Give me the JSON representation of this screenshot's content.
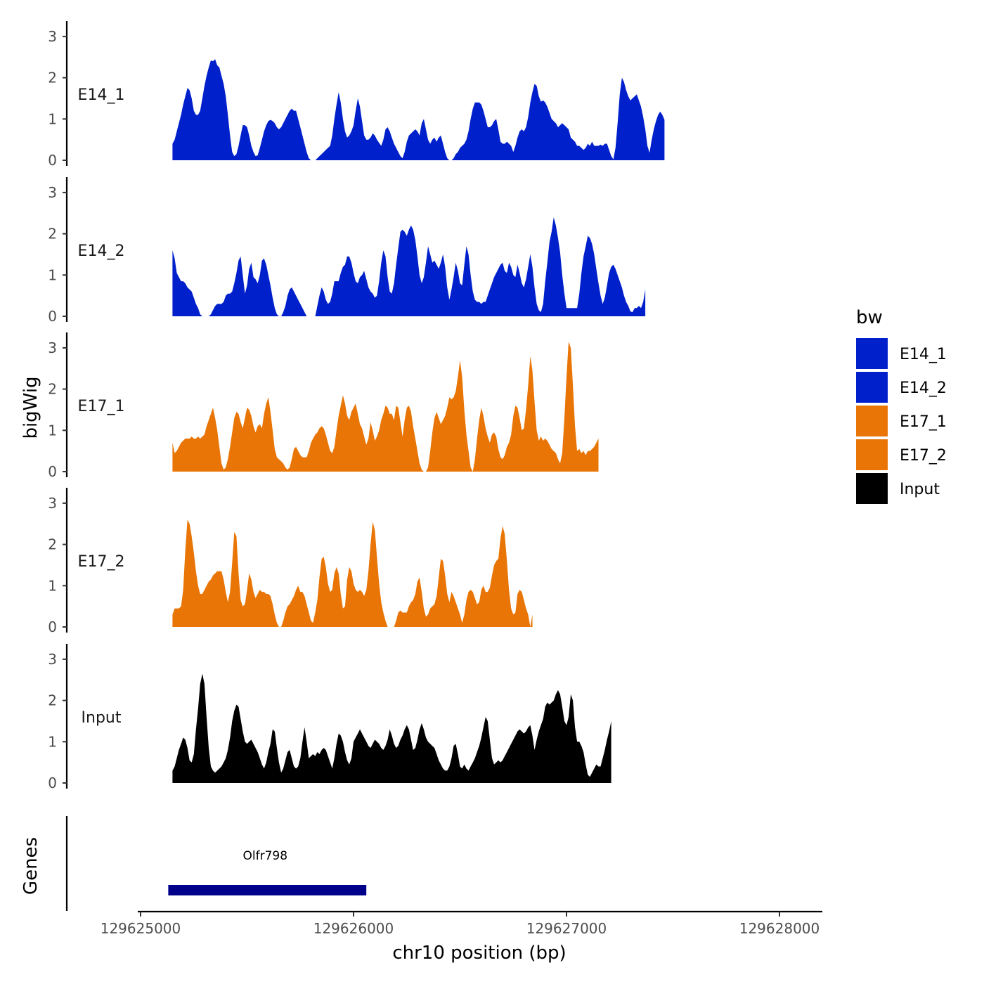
{
  "chart_data": {
    "type": "area",
    "title": "",
    "xlabel": "chr10 position (bp)",
    "ylabel": "bigWig",
    "gene_track_label": "Genes",
    "legend_title": "bw",
    "xlim": [
      129624990,
      129628200
    ],
    "x_ticks": [
      129625000,
      129626000,
      129627000,
      129628000
    ],
    "x_tick_labels": [
      "129625000",
      "129626000",
      "129627000",
      "129628000"
    ],
    "ylim": [
      0,
      3.3
    ],
    "y_ticks": [
      0,
      1,
      2,
      3
    ],
    "y_tick_labels": [
      "0",
      "1",
      "2",
      "3"
    ],
    "x_start": 129625150,
    "step": 10,
    "series": [
      {
        "name": "E14_1",
        "color": "#0020CC",
        "values": [
          0.4,
          0.5,
          0.7,
          0.9,
          1.1,
          1.35,
          1.55,
          1.75,
          1.7,
          1.5,
          1.2,
          1.1,
          1.1,
          1.2,
          1.5,
          1.8,
          2.05,
          2.25,
          2.42,
          2.4,
          2.45,
          2.3,
          2.25,
          2.05,
          1.85,
          1.55,
          1.1,
          0.6,
          0.2,
          0.1,
          0.15,
          0.35,
          0.6,
          0.85,
          0.85,
          0.8,
          0.6,
          0.35,
          0.2,
          0.1,
          0.12,
          0.3,
          0.5,
          0.7,
          0.85,
          0.95,
          0.98,
          0.95,
          0.9,
          0.8,
          0.75,
          0.8,
          0.9,
          1.0,
          1.1,
          1.2,
          1.25,
          1.2,
          1.2,
          1.0,
          0.8,
          0.6,
          0.4,
          0.2,
          0.05,
          0.0,
          0.0,
          0.0,
          0.05,
          0.1,
          0.15,
          0.2,
          0.25,
          0.3,
          0.35,
          0.6,
          1.0,
          1.35,
          1.65,
          1.4,
          1.0,
          0.7,
          0.55,
          0.6,
          0.7,
          0.85,
          1.2,
          1.5,
          1.3,
          0.95,
          0.6,
          0.5,
          0.5,
          0.55,
          0.65,
          0.6,
          0.5,
          0.42,
          0.35,
          0.5,
          0.75,
          0.8,
          0.7,
          0.55,
          0.4,
          0.3,
          0.2,
          0.1,
          0.05,
          0.2,
          0.45,
          0.6,
          0.65,
          0.7,
          0.75,
          0.7,
          0.6,
          0.9,
          1.0,
          0.75,
          0.5,
          0.4,
          0.5,
          0.55,
          0.45,
          0.55,
          0.6,
          0.4,
          0.2,
          0.05,
          0.0,
          0.0,
          0.05,
          0.15,
          0.2,
          0.3,
          0.35,
          0.4,
          0.5,
          0.7,
          1.0,
          1.25,
          1.4,
          1.4,
          1.4,
          1.35,
          1.2,
          1.0,
          0.8,
          0.8,
          0.85,
          0.95,
          1.0,
          0.75,
          0.45,
          0.4,
          0.4,
          0.45,
          0.4,
          0.35,
          0.2,
          0.35,
          0.55,
          0.7,
          0.75,
          0.7,
          0.8,
          1.05,
          1.4,
          1.65,
          1.85,
          1.8,
          1.55,
          1.42,
          1.45,
          1.4,
          1.3,
          1.15,
          1.0,
          0.95,
          0.9,
          0.8,
          0.85,
          0.9,
          0.85,
          0.8,
          0.75,
          0.55,
          0.5,
          0.45,
          0.35,
          0.35,
          0.3,
          0.25,
          0.3,
          0.4,
          0.35,
          0.45,
          0.35,
          0.35,
          0.35,
          0.38,
          0.35,
          0.4,
          0.4,
          0.25,
          0.1,
          0.02,
          0.3,
          0.9,
          1.6,
          2.0,
          1.9,
          1.7,
          1.55,
          1.45,
          1.5,
          1.55,
          1.6,
          1.45,
          1.3,
          1.05,
          0.75,
          0.35,
          0.18,
          0.5,
          0.75,
          0.95,
          1.1,
          1.18,
          1.1,
          0.98
        ]
      },
      {
        "name": "E14_2",
        "color": "#0020CC",
        "values": [
          1.6,
          1.4,
          1.05,
          0.95,
          0.85,
          0.85,
          0.8,
          0.7,
          0.65,
          0.6,
          0.45,
          0.3,
          0.2,
          0.05,
          0.0,
          0.0,
          0.0,
          0.0,
          0.05,
          0.15,
          0.25,
          0.3,
          0.3,
          0.3,
          0.35,
          0.5,
          0.55,
          0.55,
          0.6,
          0.8,
          1.05,
          1.35,
          1.45,
          1.0,
          0.55,
          0.75,
          1.15,
          1.3,
          0.95,
          0.9,
          0.8,
          1.0,
          1.35,
          1.4,
          1.25,
          1.0,
          0.75,
          0.45,
          0.2,
          0.05,
          0.0,
          0.0,
          0.1,
          0.25,
          0.5,
          0.65,
          0.7,
          0.6,
          0.5,
          0.4,
          0.3,
          0.2,
          0.1,
          0.0,
          0.0,
          0.0,
          0.0,
          0.0,
          0.25,
          0.5,
          0.7,
          0.6,
          0.4,
          0.3,
          0.35,
          0.55,
          0.85,
          0.85,
          0.85,
          1.05,
          1.2,
          1.25,
          1.45,
          1.45,
          1.3,
          1.05,
          0.85,
          0.8,
          0.95,
          1.0,
          1.1,
          0.9,
          0.7,
          0.6,
          0.55,
          0.45,
          0.5,
          0.85,
          1.3,
          1.6,
          1.45,
          0.95,
          0.6,
          0.55,
          0.8,
          1.25,
          1.65,
          2.05,
          2.1,
          2.05,
          1.95,
          2.1,
          2.2,
          2.1,
          1.85,
          1.45,
          1.0,
          0.8,
          0.95,
          1.3,
          1.7,
          1.5,
          1.3,
          1.35,
          1.25,
          1.15,
          1.3,
          1.5,
          1.2,
          0.7,
          0.4,
          0.65,
          0.95,
          1.3,
          1.1,
          0.8,
          0.75,
          1.25,
          1.7,
          1.5,
          1.0,
          0.6,
          0.4,
          0.35,
          0.35,
          0.3,
          0.35,
          0.35,
          0.5,
          0.65,
          0.8,
          0.95,
          1.05,
          1.15,
          1.25,
          1.3,
          1.1,
          1.05,
          1.3,
          1.2,
          1.0,
          0.95,
          1.25,
          1.05,
          0.8,
          0.7,
          0.9,
          1.2,
          1.5,
          1.2,
          0.7,
          0.3,
          0.15,
          0.1,
          0.3,
          0.85,
          1.3,
          1.8,
          2.05,
          2.4,
          2.2,
          1.9,
          1.55,
          1.0,
          0.55,
          0.2,
          0.2,
          0.2,
          0.2,
          0.2,
          0.2,
          0.55,
          1.05,
          1.45,
          1.7,
          1.95,
          1.9,
          1.75,
          1.5,
          1.15,
          0.8,
          0.5,
          0.3,
          0.45,
          0.75,
          1.05,
          1.2,
          1.25,
          1.15,
          1.0,
          0.85,
          0.7,
          0.5,
          0.35,
          0.25,
          0.12,
          0.1,
          0.2,
          0.2,
          0.25,
          0.2,
          0.35,
          0.65
        ]
      },
      {
        "name": "E17_1",
        "color": "#E87506",
        "values": [
          0.7,
          0.45,
          0.5,
          0.6,
          0.7,
          0.75,
          0.8,
          0.8,
          0.8,
          0.85,
          0.8,
          0.8,
          0.85,
          0.8,
          0.85,
          0.9,
          1.1,
          1.25,
          1.4,
          1.55,
          1.3,
          1.0,
          0.6,
          0.2,
          0.05,
          0.1,
          0.3,
          0.6,
          0.95,
          1.3,
          1.45,
          1.4,
          1.2,
          1.05,
          1.3,
          1.55,
          1.5,
          1.35,
          1.1,
          0.95,
          1.1,
          1.15,
          1.05,
          1.4,
          1.65,
          1.8,
          1.45,
          1.0,
          0.55,
          0.35,
          0.3,
          0.25,
          0.2,
          0.1,
          0.05,
          0.1,
          0.3,
          0.55,
          0.6,
          0.5,
          0.4,
          0.35,
          0.35,
          0.35,
          0.5,
          0.7,
          0.8,
          0.9,
          0.95,
          1.05,
          1.1,
          1.05,
          0.9,
          0.7,
          0.5,
          0.45,
          0.6,
          1.0,
          1.35,
          1.6,
          1.85,
          1.65,
          1.35,
          1.25,
          1.45,
          1.55,
          1.65,
          1.4,
          1.15,
          1.05,
          0.85,
          0.65,
          0.8,
          1.2,
          1.0,
          0.75,
          0.85,
          1.0,
          1.25,
          1.4,
          1.6,
          1.55,
          1.4,
          1.4,
          1.25,
          1.6,
          1.55,
          1.2,
          0.85,
          1.25,
          1.55,
          1.6,
          1.45,
          1.1,
          0.8,
          0.5,
          0.2,
          0.05,
          0.0,
          0.0,
          0.1,
          0.5,
          0.95,
          1.3,
          1.45,
          1.3,
          1.15,
          1.25,
          1.35,
          1.55,
          1.8,
          1.75,
          1.8,
          1.95,
          2.3,
          2.7,
          2.3,
          1.5,
          0.9,
          0.5,
          0.1,
          0.0,
          0.3,
          0.8,
          1.25,
          1.55,
          1.35,
          1.05,
          0.85,
          0.7,
          0.9,
          0.95,
          0.85,
          0.55,
          0.35,
          0.3,
          0.4,
          0.6,
          0.7,
          0.9,
          1.35,
          1.6,
          1.55,
          1.3,
          1.0,
          1.05,
          1.5,
          2.1,
          2.8,
          2.45,
          1.7,
          1.0,
          0.75,
          0.85,
          0.75,
          0.8,
          0.75,
          0.65,
          0.55,
          0.5,
          0.45,
          0.3,
          0.2,
          0.45,
          1.3,
          2.3,
          3.15,
          3.0,
          2.1,
          1.1,
          0.5,
          0.55,
          0.45,
          0.5,
          0.4,
          0.5,
          0.5,
          0.55,
          0.6,
          0.7,
          0.8
        ]
      },
      {
        "name": "E17_2",
        "color": "#E87506",
        "values": [
          0.3,
          0.45,
          0.45,
          0.45,
          0.5,
          0.9,
          1.85,
          2.6,
          2.5,
          2.2,
          1.8,
          1.35,
          1.0,
          0.8,
          0.8,
          0.9,
          1.0,
          1.1,
          1.15,
          1.25,
          1.3,
          1.35,
          1.35,
          1.35,
          1.15,
          0.85,
          0.6,
          0.85,
          1.55,
          2.3,
          2.2,
          1.3,
          0.65,
          0.5,
          0.55,
          0.9,
          1.3,
          1.15,
          0.85,
          0.7,
          0.8,
          0.9,
          0.85,
          0.85,
          0.8,
          0.8,
          0.75,
          0.55,
          0.3,
          0.1,
          0.0,
          0.0,
          0.15,
          0.35,
          0.5,
          0.55,
          0.65,
          0.75,
          0.9,
          1.0,
          0.85,
          0.85,
          0.75,
          0.55,
          0.35,
          0.15,
          0.1,
          0.35,
          0.65,
          1.2,
          1.65,
          1.7,
          1.45,
          1.05,
          0.85,
          0.9,
          1.3,
          1.45,
          1.3,
          0.8,
          0.45,
          0.5,
          1.15,
          1.45,
          1.35,
          1.05,
          0.9,
          0.85,
          0.9,
          0.85,
          0.75,
          0.9,
          1.35,
          2.0,
          2.55,
          2.35,
          1.7,
          1.05,
          0.6,
          0.35,
          0.15,
          0.0,
          0.0,
          0.0,
          0.0,
          0.15,
          0.35,
          0.4,
          0.35,
          0.35,
          0.35,
          0.5,
          0.6,
          0.65,
          0.8,
          1.1,
          1.2,
          0.85,
          0.45,
          0.25,
          0.3,
          0.45,
          0.5,
          0.55,
          0.75,
          1.2,
          1.65,
          1.6,
          1.25,
          0.8,
          0.6,
          0.85,
          0.75,
          0.6,
          0.45,
          0.3,
          0.1,
          0.3,
          0.65,
          0.85,
          0.9,
          0.85,
          0.7,
          0.55,
          0.6,
          0.9,
          1.0,
          0.85,
          0.85,
          0.95,
          1.25,
          1.5,
          1.6,
          1.65,
          2.15,
          2.45,
          2.25,
          1.6,
          0.9,
          0.45,
          0.3,
          0.35,
          0.8,
          0.9,
          0.85,
          0.65,
          0.45,
          0.3,
          0.0,
          0.3
        ]
      },
      {
        "name": "Input",
        "color": "#000000",
        "values": [
          0.3,
          0.4,
          0.6,
          0.8,
          0.95,
          1.1,
          1.05,
          0.85,
          0.55,
          0.5,
          0.7,
          1.3,
          1.8,
          2.4,
          2.65,
          2.4,
          1.6,
          0.85,
          0.4,
          0.3,
          0.25,
          0.3,
          0.35,
          0.4,
          0.5,
          0.6,
          0.8,
          1.1,
          1.5,
          1.75,
          1.9,
          1.85,
          1.55,
          1.25,
          1.0,
          0.95,
          1.0,
          1.05,
          0.95,
          0.85,
          0.75,
          0.6,
          0.45,
          0.35,
          0.5,
          0.75,
          0.95,
          1.3,
          1.25,
          0.85,
          0.5,
          0.25,
          0.35,
          0.55,
          0.75,
          0.8,
          0.6,
          0.4,
          0.35,
          0.4,
          0.6,
          1.0,
          1.35,
          1.0,
          0.6,
          0.65,
          0.7,
          0.65,
          0.75,
          0.7,
          0.8,
          0.85,
          0.8,
          0.65,
          0.5,
          0.35,
          0.6,
          0.95,
          1.2,
          1.15,
          1.0,
          0.75,
          0.55,
          0.45,
          0.6,
          1.0,
          1.1,
          1.2,
          1.3,
          1.2,
          1.1,
          1.0,
          0.9,
          0.85,
          0.95,
          1.05,
          1.0,
          0.95,
          0.85,
          0.8,
          0.9,
          1.05,
          1.3,
          1.15,
          0.95,
          0.85,
          0.9,
          1.05,
          1.15,
          1.3,
          1.4,
          1.3,
          1.05,
          0.8,
          0.85,
          1.05,
          1.3,
          1.45,
          1.3,
          1.1,
          1.0,
          0.95,
          0.9,
          0.85,
          0.7,
          0.55,
          0.45,
          0.35,
          0.3,
          0.3,
          0.4,
          0.6,
          0.9,
          0.95,
          0.7,
          0.4,
          0.35,
          0.45,
          0.35,
          0.3,
          0.4,
          0.5,
          0.6,
          0.75,
          0.9,
          1.1,
          1.35,
          1.6,
          1.5,
          1.05,
          0.6,
          0.45,
          0.5,
          0.55,
          0.5,
          0.55,
          0.65,
          0.75,
          0.85,
          0.95,
          1.05,
          1.15,
          1.25,
          1.3,
          1.25,
          1.2,
          1.25,
          1.35,
          1.4,
          1.15,
          0.8,
          1.05,
          1.25,
          1.4,
          1.55,
          1.85,
          1.95,
          1.9,
          1.95,
          2.0,
          2.15,
          2.25,
          2.15,
          1.85,
          1.5,
          1.4,
          1.6,
          2.15,
          2.0,
          1.35,
          1.0,
          1.0,
          0.9,
          0.75,
          0.45,
          0.2,
          0.15,
          0.25,
          0.35,
          0.45,
          0.4,
          0.4,
          0.6,
          0.8,
          1.05,
          1.25,
          1.5
        ]
      }
    ],
    "genes": [
      {
        "name": "Olfr798",
        "start": 129625130,
        "end": 129626060,
        "color": "#00008B"
      }
    ]
  }
}
